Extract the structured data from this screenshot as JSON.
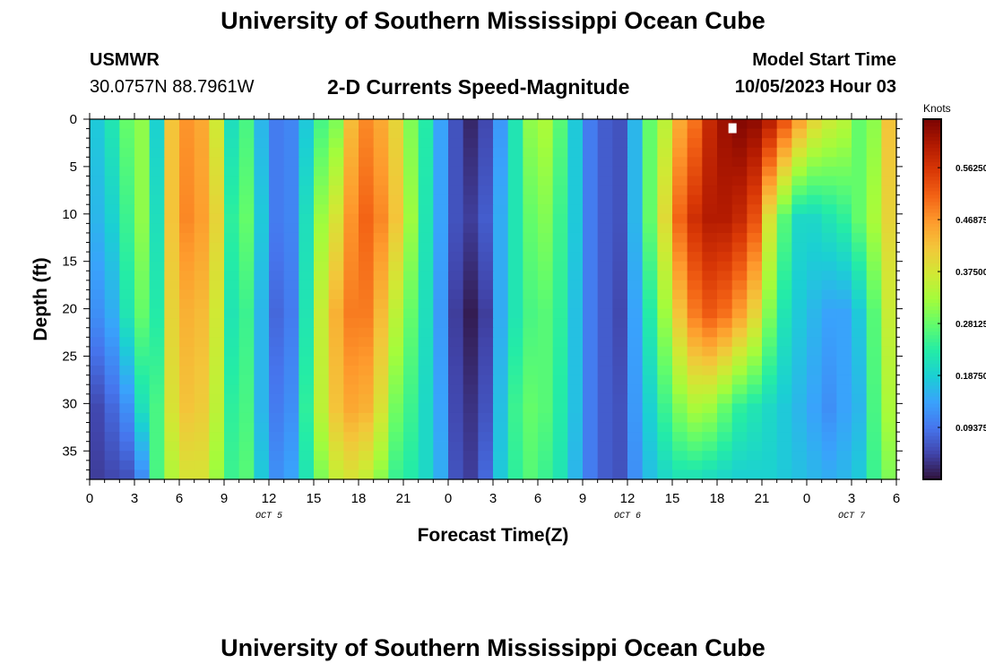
{
  "titles": {
    "main": "University of Southern Mississippi Ocean Cube",
    "bottom_repeat": "University of Southern Mississippi Ocean Cube"
  },
  "station": {
    "id": "USMWR",
    "coords": "30.0757N  88.7961W"
  },
  "plot_title": "2-D Currents Speed-Magnitude",
  "model_start": {
    "label": "Model Start Time",
    "value": "10/05/2023 Hour 03"
  },
  "colors": {
    "colormap": [
      "#30123b",
      "#4145ab",
      "#4675ed",
      "#39a2fc",
      "#1bcfd4",
      "#24eca6",
      "#61fc6c",
      "#a4fc3b",
      "#d1e834",
      "#f3c63a",
      "#fe9b2d",
      "#f36315",
      "#d93806",
      "#b11901",
      "#7a0402"
    ],
    "highlight": "#ffffff"
  },
  "chart_data": {
    "type": "heatmap",
    "title": "2-D Currents Speed-Magnitude",
    "xlabel": "Forecast Time(Z)",
    "ylabel": "Depth (ft)",
    "x_ticks": [
      "0",
      "3",
      "6",
      "9",
      "12",
      "15",
      "18",
      "21",
      "0",
      "3",
      "6",
      "9",
      "12",
      "15",
      "18",
      "21",
      "0",
      "3",
      "6"
    ],
    "x_range_hours": [
      0,
      54
    ],
    "y_ticks": [
      0,
      5,
      10,
      15,
      20,
      25,
      30,
      35
    ],
    "y_range_ft": [
      0,
      38
    ],
    "date_labels": [
      {
        "text": "OCT 5",
        "hour": 12
      },
      {
        "text": "OCT 6",
        "hour": 36
      },
      {
        "text": "OCT 7",
        "hour": 51
      }
    ],
    "colorbar": {
      "unit": "Knots",
      "range": [
        0,
        0.65
      ],
      "ticks": [
        "0.56250",
        "0.46875",
        "0.37500",
        "0.28125",
        "0.18750",
        "0.09375"
      ],
      "tick_values": [
        0.5625,
        0.46875,
        0.375,
        0.28125,
        0.1875,
        0.09375
      ]
    },
    "grid": {
      "rows": 38,
      "cols": 54,
      "depth_start_ft": 0,
      "depth_step_ft": 1,
      "hour_start": 0,
      "hour_step": 1,
      "speed_knots_by_depth": {
        "0": [
          0.18,
          0.22,
          0.28,
          0.31,
          0.19,
          0.42,
          0.47,
          0.45,
          0.37,
          0.21,
          0.26,
          0.16,
          0.1,
          0.11,
          0.18,
          0.26,
          0.3,
          0.43,
          0.48,
          0.45,
          0.4,
          0.3,
          0.23,
          0.14,
          0.06,
          0.02,
          0.05,
          0.13,
          0.22,
          0.31,
          0.33,
          0.27,
          0.18,
          0.1,
          0.07,
          0.06,
          0.16,
          0.28,
          0.35,
          0.45,
          0.5,
          0.58,
          0.62,
          0.64,
          0.63,
          0.59,
          0.52,
          0.45,
          0.39,
          0.36,
          0.34,
          0.28,
          0.31,
          0.42
        ],
        "10": [
          0.16,
          0.19,
          0.25,
          0.31,
          0.21,
          0.42,
          0.48,
          0.46,
          0.4,
          0.24,
          0.28,
          0.18,
          0.1,
          0.11,
          0.21,
          0.32,
          0.38,
          0.47,
          0.51,
          0.48,
          0.42,
          0.32,
          0.22,
          0.14,
          0.06,
          0.04,
          0.07,
          0.15,
          0.22,
          0.28,
          0.3,
          0.25,
          0.18,
          0.1,
          0.07,
          0.06,
          0.16,
          0.28,
          0.39,
          0.51,
          0.57,
          0.6,
          0.6,
          0.58,
          0.53,
          0.38,
          0.27,
          0.2,
          0.2,
          0.22,
          0.24,
          0.28,
          0.33,
          0.4
        ],
        "20": [
          0.12,
          0.15,
          0.22,
          0.28,
          0.23,
          0.4,
          0.44,
          0.43,
          0.37,
          0.22,
          0.25,
          0.16,
          0.08,
          0.1,
          0.22,
          0.36,
          0.44,
          0.49,
          0.49,
          0.43,
          0.35,
          0.28,
          0.21,
          0.13,
          0.04,
          0.01,
          0.04,
          0.15,
          0.22,
          0.26,
          0.27,
          0.24,
          0.17,
          0.1,
          0.07,
          0.05,
          0.14,
          0.23,
          0.32,
          0.42,
          0.49,
          0.52,
          0.5,
          0.46,
          0.4,
          0.3,
          0.22,
          0.18,
          0.16,
          0.14,
          0.14,
          0.18,
          0.27,
          0.36
        ],
        "30": [
          0.05,
          0.08,
          0.12,
          0.21,
          0.26,
          0.38,
          0.42,
          0.41,
          0.35,
          0.24,
          0.26,
          0.16,
          0.1,
          0.12,
          0.24,
          0.35,
          0.42,
          0.45,
          0.44,
          0.38,
          0.29,
          0.25,
          0.2,
          0.14,
          0.05,
          0.03,
          0.06,
          0.17,
          0.25,
          0.28,
          0.27,
          0.23,
          0.17,
          0.1,
          0.07,
          0.06,
          0.13,
          0.19,
          0.25,
          0.3,
          0.33,
          0.32,
          0.28,
          0.24,
          0.22,
          0.2,
          0.18,
          0.16,
          0.14,
          0.12,
          0.14,
          0.16,
          0.26,
          0.33
        ],
        "37": [
          0.04,
          0.05,
          0.06,
          0.12,
          0.26,
          0.34,
          0.38,
          0.38,
          0.32,
          0.25,
          0.27,
          0.18,
          0.12,
          0.14,
          0.22,
          0.3,
          0.36,
          0.38,
          0.36,
          0.31,
          0.25,
          0.23,
          0.2,
          0.15,
          0.06,
          0.04,
          0.08,
          0.18,
          0.24,
          0.27,
          0.25,
          0.22,
          0.16,
          0.1,
          0.07,
          0.06,
          0.12,
          0.17,
          0.2,
          0.22,
          0.22,
          0.21,
          0.2,
          0.19,
          0.19,
          0.19,
          0.18,
          0.17,
          0.16,
          0.15,
          0.16,
          0.18,
          0.25,
          0.3
        ]
      }
    },
    "highlight_marker": {
      "hour": 43,
      "depth_ft": 1
    }
  }
}
